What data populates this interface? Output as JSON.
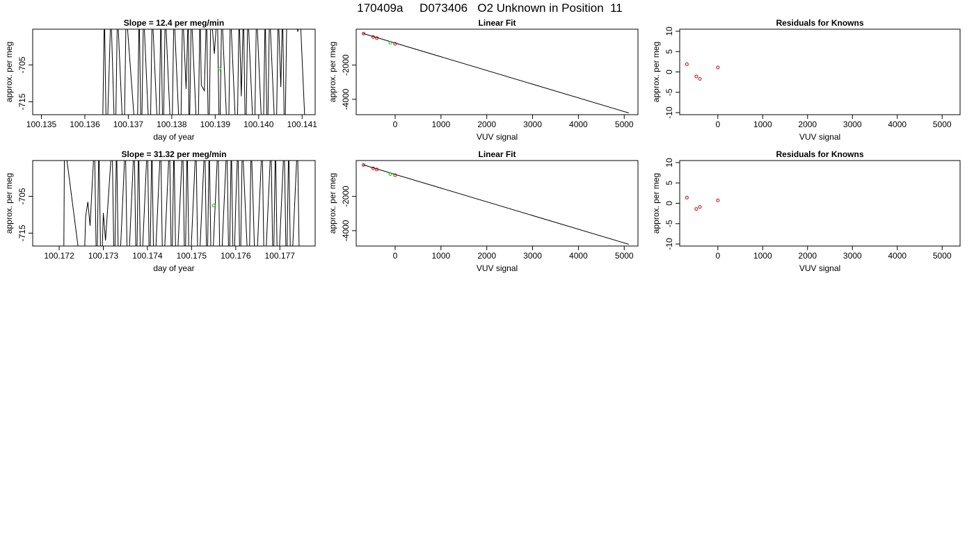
{
  "figure": {
    "title": "170409a     D073406   O2 Unknown in Position  11"
  },
  "chart_data": [
    {
      "type": "line",
      "title": "Slope =  12.4  per meg/min",
      "xlabel": "day of year",
      "ylabel": "approx. per meg",
      "xlim": [
        100.1348,
        100.1413
      ],
      "ylim": [
        -718.5,
        -695.3
      ],
      "xticks": [
        100.135,
        100.136,
        100.137,
        100.138,
        100.139,
        100.14,
        100.141
      ],
      "xtick_labels": [
        "100.135",
        "100.136",
        "100.137",
        "100.138",
        "100.139",
        "100.140",
        "100.141"
      ],
      "yticks": [
        -705,
        -715
      ],
      "ytick_labels": [
        "-705",
        "-715"
      ],
      "trace_color": "#000000",
      "marker_color": "#00cc00",
      "marker": [
        100.1391,
        -706.0
      ],
      "trace": [
        [
          100.1364,
          -730
        ],
        [
          100.13645,
          -690
        ],
        [
          100.1365,
          -730
        ],
        [
          100.1366,
          -690
        ],
        [
          100.1367,
          -730
        ],
        [
          100.13675,
          -690
        ],
        [
          100.1369,
          -730
        ],
        [
          100.13695,
          -690
        ],
        [
          100.1372,
          -730
        ],
        [
          100.13725,
          -690
        ],
        [
          100.1373,
          -730
        ],
        [
          100.13735,
          -690
        ],
        [
          100.1375,
          -730
        ],
        [
          100.13755,
          -690
        ],
        [
          100.1377,
          -730
        ],
        [
          100.13775,
          -690
        ],
        [
          100.1378,
          -730
        ],
        [
          100.13785,
          -690
        ],
        [
          100.138,
          -730
        ],
        [
          100.13805,
          -690
        ],
        [
          100.1382,
          -730
        ],
        [
          100.13825,
          -690
        ],
        [
          100.13833,
          -711.5
        ],
        [
          100.13838,
          -690
        ],
        [
          100.1384,
          -730
        ],
        [
          100.13845,
          -690
        ],
        [
          100.1386,
          -730
        ],
        [
          100.13865,
          -690
        ],
        [
          100.13868,
          -710.5
        ],
        [
          100.13875,
          -712.0
        ],
        [
          100.1388,
          -690
        ],
        [
          100.1388,
          -690
        ],
        [
          100.13885,
          -730
        ],
        [
          100.1389,
          -690
        ],
        [
          100.13898,
          -702.0
        ],
        [
          100.13905,
          -690
        ],
        [
          100.1391,
          -730
        ],
        [
          100.13915,
          -690
        ],
        [
          100.1393,
          -730
        ],
        [
          100.13935,
          -690
        ],
        [
          100.1395,
          -730
        ],
        [
          100.13955,
          -690
        ],
        [
          100.1396,
          -713.5
        ],
        [
          100.13965,
          -690
        ],
        [
          100.1397,
          -730
        ],
        [
          100.13975,
          -690
        ],
        [
          100.1399,
          -730
        ],
        [
          100.13995,
          -690
        ],
        [
          100.1401,
          -730
        ],
        [
          100.14015,
          -690
        ],
        [
          100.1402,
          -730
        ],
        [
          100.14025,
          -690
        ],
        [
          100.1404,
          -730
        ],
        [
          100.14045,
          -690
        ],
        [
          100.14051,
          -711.0
        ],
        [
          100.14055,
          -690
        ],
        [
          100.1406,
          -730
        ],
        [
          100.14065,
          -690
        ],
        [
          100.1408,
          -690
        ],
        [
          100.1409,
          -696.0
        ],
        [
          100.14095,
          -690
        ],
        [
          100.1411,
          -730
        ]
      ]
    },
    {
      "type": "scatter",
      "title": "Linear Fit",
      "xlabel": "VUV signal",
      "ylabel": "approx. per meg",
      "xlim": [
        -850,
        5300
      ],
      "ylim": [
        -4900,
        100
      ],
      "xticks": [
        0,
        1000,
        2000,
        3000,
        4000,
        5000
      ],
      "xtick_labels": [
        "0",
        "1000",
        "2000",
        "3000",
        "4000",
        "5000"
      ],
      "yticks": [
        -2000,
        -4000
      ],
      "ytick_labels": [
        "-2000",
        "-4000"
      ],
      "known_color": "#cc0000",
      "unknown_color": "#00cc00",
      "fit_line": [
        [
          -700,
          -150
        ],
        [
          5100,
          -4800
        ]
      ],
      "knowns": [
        [
          -690,
          -160
        ],
        [
          -480,
          -355
        ],
        [
          -400,
          -425
        ],
        [
          0,
          -760
        ]
      ],
      "unknown": [
        [
          -105,
          -690
        ]
      ]
    },
    {
      "type": "scatter",
      "title": "Residuals for Knowns",
      "xlabel": "VUV signal",
      "ylabel": "approx. per meg",
      "xlim": [
        -850,
        5400
      ],
      "ylim": [
        -10.5,
        10.5
      ],
      "xticks": [
        0,
        1000,
        2000,
        3000,
        4000,
        5000
      ],
      "xtick_labels": [
        "0",
        "1000",
        "2000",
        "3000",
        "4000",
        "5000"
      ],
      "yticks": [
        10,
        5,
        0,
        -5,
        -10
      ],
      "ytick_labels": [
        "10",
        "5",
        "0",
        "-5",
        "-10"
      ],
      "point_color": "#cc0000",
      "points": [
        [
          -690,
          1.9
        ],
        [
          -480,
          -1.1
        ],
        [
          -400,
          -1.7
        ],
        [
          0,
          1.1
        ]
      ]
    },
    {
      "type": "line",
      "title": "Slope =  31.32  per meg/min",
      "xlabel": "day of year",
      "ylabel": "approx. per meg",
      "xlim": [
        100.1714,
        100.1778
      ],
      "ylim": [
        -718.5,
        -695.3
      ],
      "xticks": [
        100.172,
        100.173,
        100.174,
        100.175,
        100.176,
        100.177
      ],
      "xtick_labels": [
        "100.172",
        "100.173",
        "100.174",
        "100.175",
        "100.176",
        "100.177"
      ],
      "yticks": [
        -705,
        -715
      ],
      "ytick_labels": [
        "-705",
        "-715"
      ],
      "trace_color": "#000000",
      "marker_color": "#00cc00",
      "marker": [
        100.1755,
        -707.5
      ],
      "trace": [
        [
          100.1721,
          -730
        ],
        [
          100.17212,
          -690
        ],
        [
          100.17255,
          -730
        ],
        [
          100.1726,
          -710.5
        ],
        [
          100.17265,
          -706.5
        ],
        [
          100.1727,
          -713.0
        ],
        [
          100.1728,
          -690
        ],
        [
          100.17285,
          -730
        ],
        [
          100.1729,
          -690
        ],
        [
          100.17295,
          -730
        ],
        [
          100.173,
          -709.5
        ],
        [
          100.17305,
          -717.0
        ],
        [
          100.1732,
          -690
        ],
        [
          100.17325,
          -730
        ],
        [
          100.1733,
          -690
        ],
        [
          100.17335,
          -730
        ],
        [
          100.1735,
          -690
        ],
        [
          100.17355,
          -730
        ],
        [
          100.1737,
          -690
        ],
        [
          100.17375,
          -730
        ],
        [
          100.1738,
          -690
        ],
        [
          100.17385,
          -730
        ],
        [
          100.174,
          -690
        ],
        [
          100.17405,
          -730
        ],
        [
          100.1741,
          -690
        ],
        [
          100.17415,
          -730
        ],
        [
          100.1743,
          -690
        ],
        [
          100.17435,
          -730
        ],
        [
          100.1745,
          -690
        ],
        [
          100.17455,
          -730
        ],
        [
          100.1746,
          -690
        ],
        [
          100.17465,
          -730
        ],
        [
          100.1748,
          -690
        ],
        [
          100.17485,
          -730
        ],
        [
          100.1749,
          -690
        ],
        [
          100.17495,
          -730
        ],
        [
          100.1751,
          -690
        ],
        [
          100.17515,
          -730
        ],
        [
          100.1753,
          -690
        ],
        [
          100.17535,
          -730
        ],
        [
          100.1754,
          -690
        ],
        [
          100.17545,
          -730
        ],
        [
          100.1756,
          -690
        ],
        [
          100.17565,
          -730
        ],
        [
          100.1758,
          -690
        ],
        [
          100.17585,
          -730
        ],
        [
          100.1759,
          -690
        ],
        [
          100.17595,
          -730
        ],
        [
          100.176,
          -707.5
        ],
        [
          100.17605,
          -690
        ],
        [
          100.1761,
          -730
        ],
        [
          100.17615,
          -690
        ],
        [
          100.1763,
          -730
        ],
        [
          100.17635,
          -690
        ],
        [
          100.1764,
          -709.0
        ],
        [
          100.17645,
          -730
        ],
        [
          100.1766,
          -690
        ],
        [
          100.17665,
          -730
        ],
        [
          100.1768,
          -690
        ],
        [
          100.17685,
          -730
        ],
        [
          100.1769,
          -690
        ],
        [
          100.17695,
          -730
        ],
        [
          100.1771,
          -690
        ],
        [
          100.17715,
          -730
        ],
        [
          100.1772,
          -690
        ],
        [
          100.17725,
          -730
        ],
        [
          100.1774,
          -690
        ],
        [
          100.17745,
          -730
        ]
      ]
    },
    {
      "type": "scatter",
      "title": "Linear Fit",
      "xlabel": "VUV signal",
      "ylabel": "approx. per meg",
      "xlim": [
        -850,
        5300
      ],
      "ylim": [
        -4900,
        100
      ],
      "xticks": [
        0,
        1000,
        2000,
        3000,
        4000,
        5000
      ],
      "xtick_labels": [
        "0",
        "1000",
        "2000",
        "3000",
        "4000",
        "5000"
      ],
      "yticks": [
        -2000,
        -4000
      ],
      "ytick_labels": [
        "-2000",
        "-4000"
      ],
      "known_color": "#cc0000",
      "unknown_color": "#00cc00",
      "fit_line": [
        [
          -700,
          -150
        ],
        [
          5100,
          -4800
        ]
      ],
      "knowns": [
        [
          -690,
          -160
        ],
        [
          -480,
          -355
        ],
        [
          -400,
          -425
        ],
        [
          0,
          -760
        ]
      ],
      "unknown": [
        [
          -105,
          -690
        ]
      ]
    },
    {
      "type": "scatter",
      "title": "Residuals for Knowns",
      "xlabel": "VUV signal",
      "ylabel": "approx. per meg",
      "xlim": [
        -850,
        5400
      ],
      "ylim": [
        -10.5,
        10.5
      ],
      "xticks": [
        0,
        1000,
        2000,
        3000,
        4000,
        5000
      ],
      "xtick_labels": [
        "0",
        "1000",
        "2000",
        "3000",
        "4000",
        "5000"
      ],
      "yticks": [
        10,
        5,
        0,
        -5,
        -10
      ],
      "ytick_labels": [
        "10",
        "5",
        "0",
        "-5",
        "-10"
      ],
      "point_color": "#cc0000",
      "points": [
        [
          -690,
          1.4
        ],
        [
          -480,
          -1.4
        ],
        [
          -400,
          -0.9
        ],
        [
          0,
          0.7
        ]
      ]
    }
  ]
}
